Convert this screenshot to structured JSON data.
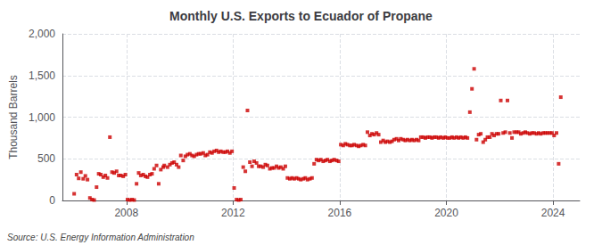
{
  "chart_data": {
    "type": "scatter",
    "title": "Monthly U.S. Exports to Ecuador of Propane",
    "ylabel": "Thousand Barrels",
    "annotations": [
      "Source: U.S. Energy Information Administration"
    ],
    "color": "#cc0000",
    "marker": "square",
    "grid": true,
    "xlim": [
      2005.6,
      2025.0
    ],
    "xticks": [
      2008,
      2012,
      2016,
      2020,
      2024
    ],
    "ylim": [
      0,
      2000
    ],
    "yticks": [
      0,
      500,
      {
        "value": 1000,
        "label": "1,000"
      },
      {
        "value": 1500,
        "label": "1,500"
      },
      {
        "value": 2000,
        "label": "2,000"
      }
    ],
    "x": [
      2006.04,
      2006.13,
      2006.21,
      2006.29,
      2006.38,
      2006.46,
      2006.54,
      2006.63,
      2006.71,
      2006.79,
      2006.88,
      2006.96,
      2007.04,
      2007.13,
      2007.21,
      2007.29,
      2007.38,
      2007.46,
      2007.54,
      2007.63,
      2007.71,
      2007.79,
      2007.88,
      2007.96,
      2008.04,
      2008.13,
      2008.21,
      2008.29,
      2008.38,
      2008.46,
      2008.54,
      2008.63,
      2008.71,
      2008.79,
      2008.88,
      2008.96,
      2009.04,
      2009.13,
      2009.21,
      2009.29,
      2009.38,
      2009.42,
      2009.54,
      2009.63,
      2009.71,
      2009.79,
      2009.88,
      2009.96,
      2010.04,
      2010.13,
      2010.21,
      2010.29,
      2010.38,
      2010.46,
      2010.54,
      2010.63,
      2010.71,
      2010.79,
      2010.88,
      2010.96,
      2011.04,
      2011.13,
      2011.21,
      2011.29,
      2011.38,
      2011.46,
      2011.54,
      2011.63,
      2011.71,
      2011.79,
      2011.88,
      2011.96,
      2012.04,
      2012.13,
      2012.21,
      2012.29,
      2012.38,
      2012.46,
      2012.54,
      2012.63,
      2012.71,
      2012.79,
      2012.88,
      2012.96,
      2013.04,
      2013.13,
      2013.21,
      2013.29,
      2013.38,
      2013.46,
      2013.54,
      2013.63,
      2013.71,
      2013.79,
      2013.88,
      2013.96,
      2014.04,
      2014.13,
      2014.21,
      2014.29,
      2014.38,
      2014.46,
      2014.54,
      2014.63,
      2014.71,
      2014.79,
      2014.88,
      2014.96,
      2015.04,
      2015.13,
      2015.21,
      2015.29,
      2015.38,
      2015.46,
      2015.54,
      2015.63,
      2015.71,
      2015.79,
      2015.88,
      2015.96,
      2016.04,
      2016.13,
      2016.21,
      2016.29,
      2016.38,
      2016.46,
      2016.54,
      2016.63,
      2016.71,
      2016.79,
      2016.88,
      2016.96,
      2017.04,
      2017.13,
      2017.21,
      2017.29,
      2017.38,
      2017.46,
      2017.54,
      2017.63,
      2017.71,
      2017.79,
      2017.88,
      2017.96,
      2018.04,
      2018.13,
      2018.21,
      2018.29,
      2018.38,
      2018.46,
      2018.54,
      2018.63,
      2018.71,
      2018.79,
      2018.88,
      2018.96,
      2019.04,
      2019.13,
      2019.21,
      2019.29,
      2019.38,
      2019.46,
      2019.54,
      2019.63,
      2019.71,
      2019.79,
      2019.88,
      2019.96,
      2020.04,
      2020.13,
      2020.21,
      2020.29,
      2020.38,
      2020.46,
      2020.54,
      2020.63,
      2020.71,
      2020.79,
      2020.88,
      2020.96,
      2021.04,
      2021.13,
      2021.21,
      2021.29,
      2021.38,
      2021.46,
      2021.54,
      2021.63,
      2021.71,
      2021.79,
      2021.88,
      2021.96,
      2022.04,
      2022.13,
      2022.21,
      2022.29,
      2022.38,
      2022.46,
      2022.54,
      2022.63,
      2022.71,
      2022.79,
      2022.88,
      2022.96,
      2023.04,
      2023.13,
      2023.21,
      2023.29,
      2023.38,
      2023.46,
      2023.54,
      2023.63,
      2023.71,
      2023.79,
      2023.88,
      2023.96,
      2024.04,
      2024.13,
      2024.21,
      2024.29
    ],
    "values": [
      80,
      310,
      265,
      340,
      260,
      295,
      250,
      30,
      10,
      5,
      160,
      320,
      310,
      280,
      300,
      270,
      760,
      340,
      330,
      350,
      300,
      300,
      290,
      310,
      10,
      5,
      10,
      5,
      200,
      330,
      300,
      310,
      290,
      280,
      310,
      320,
      380,
      420,
      200,
      370,
      400,
      420,
      400,
      430,
      450,
      460,
      430,
      400,
      540,
      480,
      530,
      550,
      560,
      540,
      530,
      550,
      560,
      560,
      570,
      540,
      550,
      580,
      570,
      590,
      600,
      580,
      590,
      580,
      580,
      590,
      570,
      590,
      150,
      10,
      5,
      10,
      400,
      350,
      1080,
      460,
      410,
      470,
      450,
      410,
      410,
      400,
      430,
      420,
      380,
      390,
      390,
      410,
      390,
      400,
      380,
      410,
      270,
      260,
      270,
      260,
      270,
      260,
      250,
      260,
      270,
      250,
      260,
      270,
      440,
      490,
      480,
      490,
      470,
      480,
      490,
      470,
      480,
      490,
      480,
      470,
      670,
      660,
      680,
      670,
      660,
      660,
      670,
      660,
      650,
      660,
      670,
      660,
      820,
      780,
      800,
      790,
      810,
      790,
      700,
      720,
      700,
      710,
      700,
      710,
      730,
      740,
      720,
      740,
      730,
      720,
      730,
      720,
      730,
      720,
      730,
      720,
      760,
      760,
      750,
      760,
      760,
      750,
      760,
      760,
      750,
      760,
      750,
      760,
      750,
      750,
      760,
      750,
      760,
      750,
      760,
      750,
      760,
      750,
      1060,
      1340,
      1580,
      730,
      790,
      800,
      700,
      730,
      760,
      760,
      800,
      780,
      800,
      800,
      1200,
      810,
      820,
      1200,
      810,
      750,
      820,
      820,
      820,
      800,
      810,
      820,
      810,
      800,
      810,
      810,
      800,
      810,
      800,
      810,
      810,
      810,
      810,
      810,
      780,
      810,
      440,
      1240
    ]
  }
}
